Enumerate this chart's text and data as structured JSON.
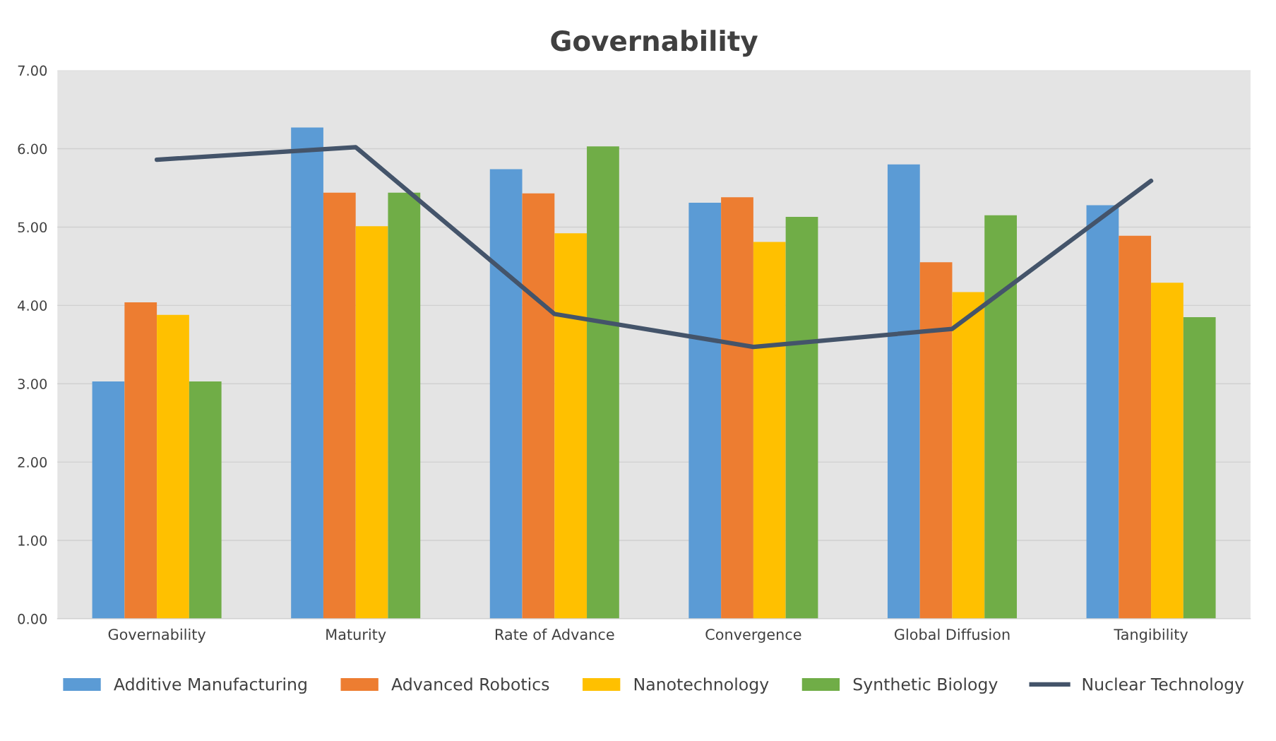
{
  "chart_data": {
    "type": "bar",
    "title": "Governability",
    "categories": [
      "Governability",
      "Maturity",
      "Rate of Advance",
      "Convergence",
      "Global Diffusion",
      "Tangibility"
    ],
    "series": [
      {
        "name": "Additive Manufacturing",
        "color": "#5b9bd5",
        "values": [
          3.03,
          6.27,
          5.74,
          5.31,
          5.8,
          5.28
        ]
      },
      {
        "name": "Advanced Robotics",
        "color": "#ed7d31",
        "values": [
          4.04,
          5.44,
          5.43,
          5.38,
          4.55,
          4.89
        ]
      },
      {
        "name": "Nanotechnology",
        "color": "#ffc000",
        "values": [
          3.88,
          5.01,
          4.92,
          4.81,
          4.17,
          4.29
        ]
      },
      {
        "name": "Synthetic Biology",
        "color": "#70ad47",
        "values": [
          3.03,
          5.44,
          6.03,
          5.13,
          5.15,
          3.85
        ]
      },
      {
        "name": "Nuclear Technology",
        "color": "#44546a",
        "type": "line",
        "values": [
          5.86,
          6.02,
          3.89,
          3.47,
          3.7,
          5.59
        ]
      }
    ],
    "ylim": [
      0,
      7
    ],
    "yticks": [
      {
        "value": 0,
        "label": "0.00"
      },
      {
        "value": 1,
        "label": "1.00"
      },
      {
        "value": 2,
        "label": "2.00"
      },
      {
        "value": 3,
        "label": "3.00"
      },
      {
        "value": 4,
        "label": "4.00"
      },
      {
        "value": 5,
        "label": "5.00"
      },
      {
        "value": 6,
        "label": "6.00"
      },
      {
        "value": 7,
        "label": "7.00"
      }
    ],
    "grid": "y",
    "legend": "bottom",
    "marker": "none",
    "line_style": "solid"
  }
}
